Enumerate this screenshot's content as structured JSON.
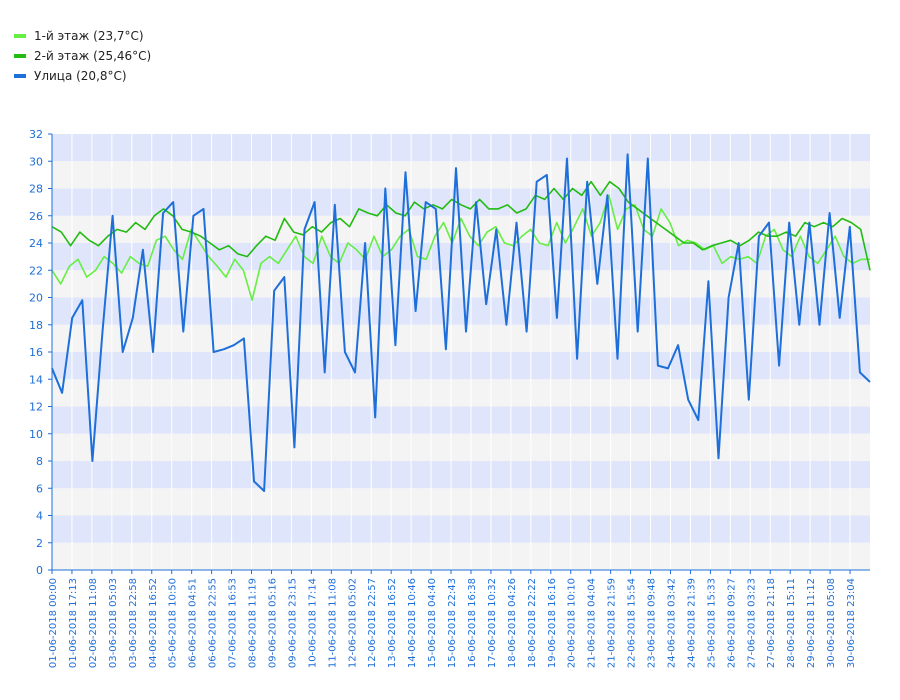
{
  "legend": [
    {
      "label": "1-й этаж (23,7°C)",
      "color": "#66ee44"
    },
    {
      "label": "2-й этаж (25,46°C)",
      "color": "#22bb11"
    },
    {
      "label": "Улица (20,8°C)",
      "color": "#1e6fd9"
    }
  ],
  "colors": {
    "band_blue": "#dfe6fb",
    "band_gray": "#f4f4f4",
    "axis": "#1e6fd9",
    "grid_vertical": "#ffffff"
  },
  "chart_data": {
    "type": "line",
    "title": "",
    "xlabel": "",
    "ylabel": "",
    "ylim": [
      0,
      32
    ],
    "yticks": [
      0,
      2,
      4,
      6,
      8,
      10,
      12,
      14,
      16,
      18,
      20,
      22,
      24,
      26,
      28,
      30,
      32
    ],
    "grid": true,
    "legend_position": "top-left",
    "x_tick_labels": [
      "01-06-2018 00:00",
      "01-06-2018 17:13",
      "02-06-2018 11:08",
      "03-06-2018 05:03",
      "03-06-2018 22:58",
      "04-06-2018 16:52",
      "05-06-2018 10:50",
      "06-06-2018 04:51",
      "06-06-2018 22:55",
      "07-06-2018 16:53",
      "08-06-2018 11:19",
      "09-06-2018 05:16",
      "09-06-2018 23:15",
      "10-06-2018 17:14",
      "11-06-2018 11:08",
      "12-06-2018 05:02",
      "12-06-2018 22:57",
      "13-06-2018 16:52",
      "14-06-2018 10:46",
      "15-06-2018 04:40",
      "15-06-2018 22:43",
      "16-06-2018 16:38",
      "17-06-2018 10:32",
      "18-06-2018 04:26",
      "18-06-2018 22:22",
      "19-06-2018 16:16",
      "20-06-2018 10:10",
      "21-06-2018 04:04",
      "21-06-2018 21:59",
      "22-06-2018 15:54",
      "23-06-2018 09:48",
      "24-06-2018 03:42",
      "24-06-2018 21:39",
      "25-06-2018 15:33",
      "26-06-2018 09:27",
      "27-06-2018 03:23",
      "27-06-2018 21:18",
      "28-06-2018 15:11",
      "29-06-2018 11:12",
      "30-06-2018 05:08",
      "30-06-2018 23:04"
    ],
    "series": [
      {
        "name": "1-й этаж (23,7°C)",
        "color": "#66ee44",
        "values": [
          22.0,
          21.0,
          22.3,
          22.8,
          21.5,
          22.0,
          23.0,
          22.5,
          21.8,
          23.0,
          22.5,
          22.3,
          24.2,
          24.5,
          23.5,
          22.8,
          25.0,
          24.0,
          23.0,
          22.3,
          21.5,
          22.8,
          22.0,
          19.8,
          22.5,
          23.0,
          22.5,
          23.5,
          24.5,
          23.0,
          22.5,
          24.5,
          23.0,
          22.5,
          24.0,
          23.5,
          22.8,
          24.5,
          23.0,
          23.5,
          24.5,
          25.0,
          23.0,
          22.8,
          24.5,
          25.5,
          24.0,
          25.8,
          24.5,
          23.8,
          24.8,
          25.2,
          24.0,
          23.8,
          24.5,
          25.0,
          24.0,
          23.8,
          25.5,
          24.0,
          25.2,
          26.5,
          24.5,
          25.5,
          27.5,
          25.0,
          26.5,
          26.8,
          25.0,
          24.5,
          26.5,
          25.5,
          23.8,
          24.2,
          24.0,
          23.5,
          23.8,
          22.5,
          23.0,
          22.8,
          23.0,
          22.5,
          24.5,
          25.0,
          23.5,
          23.0,
          24.5,
          23.0,
          22.5,
          23.5,
          24.5,
          23.0,
          22.5,
          22.8,
          22.8
        ]
      },
      {
        "name": "2-й этаж (25,46°C)",
        "color": "#22bb11",
        "values": [
          25.2,
          24.8,
          23.8,
          24.8,
          24.2,
          23.8,
          24.5,
          25.0,
          24.8,
          25.5,
          25.0,
          26.0,
          26.5,
          26.0,
          25.0,
          24.8,
          24.5,
          24.0,
          23.5,
          23.8,
          23.2,
          23.0,
          23.8,
          24.5,
          24.2,
          25.8,
          24.8,
          24.6,
          25.2,
          24.8,
          25.5,
          25.8,
          25.2,
          26.5,
          26.2,
          26.0,
          26.8,
          26.2,
          26.0,
          27.0,
          26.5,
          26.8,
          26.5,
          27.2,
          26.8,
          26.5,
          27.2,
          26.5,
          26.5,
          26.8,
          26.2,
          26.5,
          27.5,
          27.2,
          28.0,
          27.2,
          28.0,
          27.5,
          28.5,
          27.5,
          28.5,
          28.0,
          27.0,
          26.5,
          26.0,
          25.5,
          25.0,
          24.5,
          24.0,
          24.0,
          23.5,
          23.8,
          24.0,
          24.2,
          23.8,
          24.2,
          24.8,
          24.5,
          24.5,
          24.8,
          24.5,
          25.5,
          25.2,
          25.5,
          25.2,
          25.8,
          25.5,
          25.0,
          22.0
        ]
      },
      {
        "name": "Улица (20,8°C)",
        "color": "#1e6fd9",
        "values": [
          14.8,
          13.0,
          18.5,
          19.8,
          8.0,
          17.5,
          26.0,
          16.0,
          18.5,
          23.5,
          16.0,
          26.2,
          27.0,
          17.5,
          26.0,
          26.5,
          16.0,
          16.2,
          16.5,
          17.0,
          6.5,
          5.8,
          20.5,
          21.5,
          9.0,
          25.0,
          27.0,
          14.5,
          26.8,
          16.0,
          14.5,
          24.0,
          11.2,
          28.0,
          16.5,
          29.2,
          19.0,
          27.0,
          26.5,
          16.2,
          29.5,
          17.5,
          27.0,
          19.5,
          25.0,
          18.0,
          25.5,
          17.5,
          28.5,
          29.0,
          18.5,
          30.2,
          15.5,
          28.5,
          21.0,
          27.5,
          15.5,
          30.5,
          17.5,
          30.2,
          15.0,
          14.8,
          16.5,
          12.5,
          11.0,
          21.2,
          8.2,
          20.0,
          24.0,
          12.5,
          24.5,
          25.5,
          15.0,
          25.5,
          18.0,
          25.5,
          18.0,
          26.2,
          18.5,
          25.2,
          14.5,
          13.8
        ]
      }
    ]
  }
}
